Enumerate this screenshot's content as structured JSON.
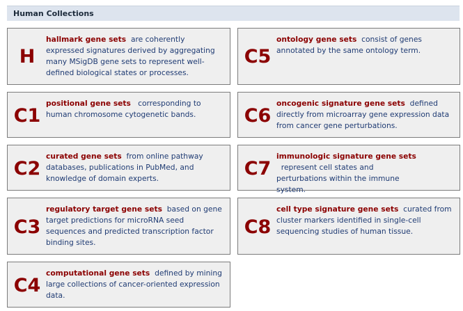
{
  "header": {
    "title": "Human Collections"
  },
  "collections": [
    {
      "code": "H",
      "title": "hallmark gene sets",
      "gap": "  ",
      "description": "are coherently expressed signatures derived by aggregating many MSigDB gene sets to represent well-defined biological states or processes."
    },
    {
      "code": "C5",
      "title": "ontology gene sets",
      "gap": "  ",
      "description": "consist of genes annotated by the same ontology term."
    },
    {
      "code": "C1",
      "title": "positional gene sets",
      "gap": "   ",
      "description": "corresponding to human chromosome cytogenetic bands."
    },
    {
      "code": "C6",
      "title": "oncogenic signature gene sets",
      "gap": "  ",
      "description": "defined directly from microarray gene expression data from cancer gene perturbations."
    },
    {
      "code": "C2",
      "title": "curated gene sets",
      "gap": "  ",
      "description": "from online pathway databases, publications in PubMed, and knowledge of domain experts."
    },
    {
      "code": "C7",
      "title": "immunologic signature gene sets",
      "gap": "  ",
      "description": "represent cell states and perturbations within the immune system."
    },
    {
      "code": "C3",
      "title": "regulatory target gene sets",
      "gap": "  ",
      "description": "based on gene target predictions for microRNA seed sequences and predicted transcription factor binding sites."
    },
    {
      "code": "C8",
      "title": "cell type signature gene sets",
      "gap": "  ",
      "description": "curated from cluster markers identified in single-cell sequencing studies of human tissue."
    },
    {
      "code": "C4",
      "title": "computational gene sets",
      "gap": "  ",
      "description": "defined by mining large collections of cancer-oriented expression data."
    }
  ]
}
